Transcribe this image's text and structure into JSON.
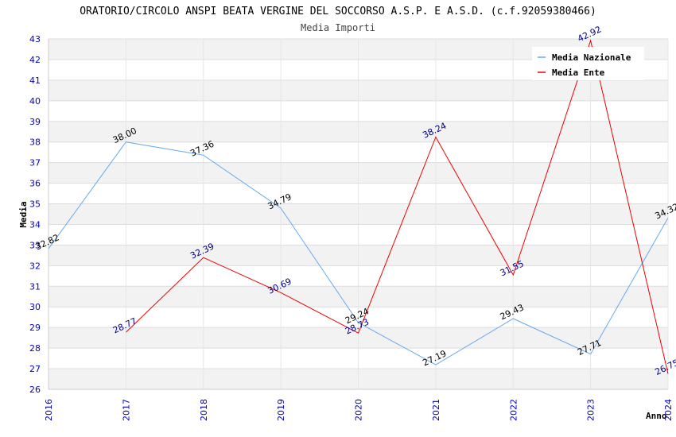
{
  "chart_data": {
    "type": "line",
    "title": "ORATORIO/CIRCOLO ANSPI BEATA VERGINE DEL SOCCORSO A.S.P. E A.S.D. (c.f.92059380466)",
    "subtitle": "Media Importi",
    "xlabel": "Anno",
    "ylabel": "Media",
    "x": [
      "2016",
      "2017",
      "2018",
      "2019",
      "2020",
      "2021",
      "2022",
      "2023",
      "2024"
    ],
    "ylim": [
      26,
      43
    ],
    "yticks": [
      "26",
      "27",
      "28",
      "29",
      "30",
      "31",
      "32",
      "33",
      "34",
      "35",
      "36",
      "37",
      "38",
      "39",
      "40",
      "41",
      "42",
      "43"
    ],
    "legend_position": "top-right",
    "series": [
      {
        "name": "Media Nazionale",
        "color": "#66aaee",
        "label_color": "#000000",
        "values": [
          32.82,
          38.0,
          37.36,
          34.79,
          29.24,
          27.19,
          29.43,
          27.71,
          34.32
        ],
        "labels": [
          "32.82",
          "38.00",
          "37.36",
          "34.79",
          "29.24",
          "27.19",
          "29.43",
          "27.71",
          "34.32"
        ]
      },
      {
        "name": "Media Ente",
        "color": "#ee0000",
        "label_color": "#000088",
        "values": [
          null,
          28.77,
          32.39,
          30.69,
          28.73,
          38.24,
          31.55,
          42.92,
          26.75
        ],
        "labels": [
          null,
          "28.77",
          "32.39",
          "30.69",
          "28.73",
          "38.24",
          "31.55",
          "42.92",
          "26.75"
        ]
      }
    ]
  }
}
